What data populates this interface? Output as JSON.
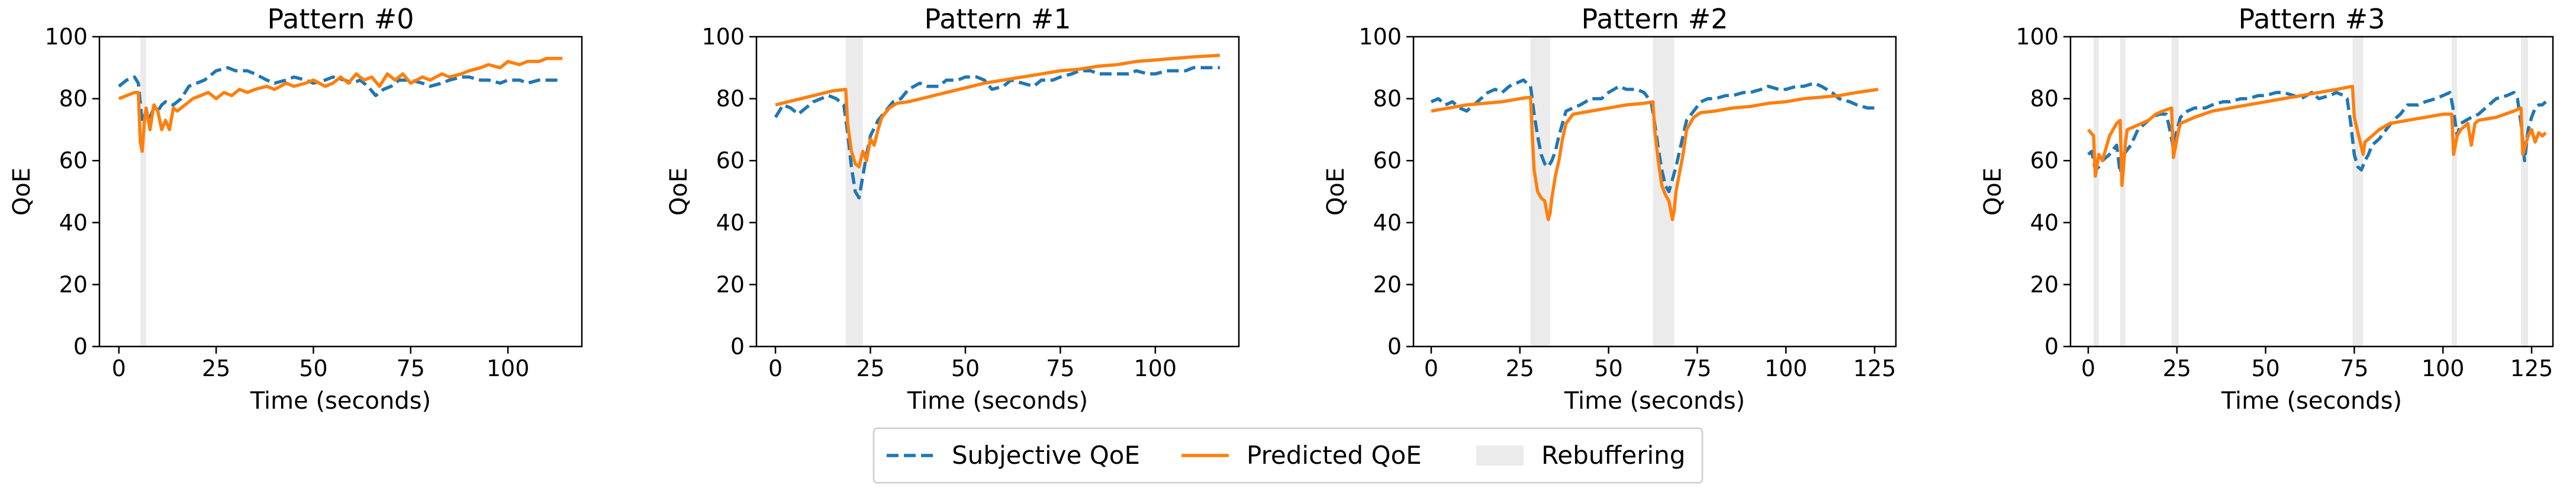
{
  "colors": {
    "subjective": "#1f77b4",
    "predicted": "#ff7f0e",
    "rebuffer": "#ebebeb"
  },
  "legend": {
    "placement": "bottom-center",
    "items": [
      {
        "label": "Subjective QoE",
        "style": "dashed",
        "color": "#1f77b4"
      },
      {
        "label": "Predicted QoE",
        "style": "solid",
        "color": "#ff7f0e"
      },
      {
        "label": "Rebuffering",
        "style": "patch",
        "color": "#ebebeb"
      }
    ]
  },
  "chart_data": [
    {
      "type": "line",
      "title": "Pattern #0",
      "xlabel": "Time (seconds)",
      "ylabel": "QoE",
      "xlim": [
        -5,
        119
      ],
      "ylim": [
        0,
        100
      ],
      "xticks": [
        0,
        25,
        50,
        75,
        100
      ],
      "yticks": [
        0,
        20,
        40,
        60,
        80,
        100
      ],
      "grid": false,
      "rebuffering": [
        [
          5.5,
          7
        ]
      ],
      "series": [
        {
          "name": "Subjective QoE",
          "x": [
            0,
            2,
            4,
            5,
            6,
            7,
            8,
            9,
            10,
            11,
            12,
            14,
            16,
            18,
            20,
            22,
            25,
            28,
            30,
            33,
            35,
            38,
            40,
            43,
            45,
            48,
            50,
            53,
            55,
            58,
            60,
            62,
            64,
            66,
            68,
            70,
            72,
            75,
            78,
            80,
            83,
            85,
            88,
            90,
            93,
            95,
            98,
            100,
            103,
            105,
            108,
            110,
            114
          ],
          "y": [
            84,
            86,
            87,
            85,
            72,
            76,
            74,
            77,
            76,
            78,
            79,
            78,
            80,
            84,
            85,
            86,
            89,
            90,
            89,
            89,
            88,
            86,
            85,
            86,
            87,
            86,
            85,
            86,
            87,
            86,
            85,
            86,
            84,
            81,
            83,
            84,
            86,
            86,
            85,
            84,
            85,
            86,
            87,
            87,
            86,
            86,
            85,
            86,
            86,
            85,
            86,
            86,
            86
          ]
        },
        {
          "name": "Predicted QoE",
          "x": [
            0,
            2,
            4,
            5,
            5.5,
            6,
            6.5,
            7,
            8,
            9,
            10,
            11,
            12,
            13,
            14,
            15,
            17,
            19,
            21,
            23,
            25,
            27,
            29,
            31,
            33,
            35,
            38,
            40,
            43,
            45,
            48,
            50,
            53,
            55,
            57,
            59,
            61,
            63,
            65,
            67,
            69,
            71,
            73,
            75,
            78,
            80,
            83,
            85,
            88,
            90,
            93,
            95,
            98,
            100,
            103,
            105,
            108,
            110,
            114
          ],
          "y": [
            80,
            81,
            82,
            82,
            66,
            63,
            72,
            77,
            70,
            78,
            76,
            70,
            73,
            70,
            77,
            76,
            78,
            80,
            81,
            82,
            80,
            82,
            81,
            83,
            82,
            83,
            84,
            83,
            85,
            84,
            85,
            86,
            84,
            85,
            87,
            85,
            88,
            86,
            87,
            84,
            88,
            86,
            88,
            85,
            87,
            86,
            88,
            87,
            88,
            89,
            90,
            91,
            90,
            92,
            91,
            92,
            92,
            93,
            93
          ]
        }
      ]
    },
    {
      "type": "line",
      "title": "Pattern #1",
      "xlabel": "Time (seconds)",
      "ylabel": "QoE",
      "xlim": [
        -5,
        122
      ],
      "ylim": [
        0,
        100
      ],
      "xticks": [
        0,
        25,
        50,
        75,
        100
      ],
      "yticks": [
        0,
        20,
        40,
        60,
        80,
        100
      ],
      "grid": false,
      "rebuffering": [
        [
          18.5,
          23
        ]
      ],
      "series": [
        {
          "name": "Subjective QoE",
          "x": [
            0,
            2,
            4,
            6,
            8,
            10,
            12,
            14,
            16,
            18,
            19,
            20,
            21,
            22,
            23,
            24,
            25,
            27,
            29,
            31,
            33,
            35,
            38,
            40,
            43,
            45,
            48,
            50,
            53,
            55,
            57,
            60,
            62,
            65,
            68,
            70,
            73,
            75,
            78,
            80,
            83,
            85,
            88,
            90,
            93,
            95,
            98,
            100,
            103,
            105,
            108,
            110,
            113,
            117
          ],
          "y": [
            74,
            78,
            77,
            75,
            77,
            79,
            80,
            81,
            80,
            78,
            69,
            58,
            50,
            48,
            55,
            62,
            68,
            73,
            76,
            79,
            80,
            83,
            85,
            84,
            84,
            86,
            86,
            87,
            87,
            86,
            83,
            84,
            86,
            85,
            84,
            86,
            86,
            87,
            88,
            89,
            89,
            88,
            88,
            88,
            88,
            89,
            88,
            88,
            89,
            89,
            89,
            90,
            90,
            90
          ]
        },
        {
          "name": "Predicted QoE",
          "x": [
            0,
            5,
            10,
            15,
            18.5,
            19,
            20,
            21,
            22,
            23,
            24,
            25,
            26,
            27,
            28,
            30,
            32,
            35,
            40,
            45,
            50,
            55,
            60,
            65,
            70,
            75,
            80,
            85,
            90,
            95,
            100,
            105,
            110,
            117
          ],
          "y": [
            78,
            79.5,
            81,
            82.5,
            83,
            72,
            63,
            59,
            58,
            63,
            60,
            67,
            65,
            70,
            74,
            77,
            78.5,
            79,
            80.5,
            82,
            83.5,
            85,
            86,
            87,
            88,
            89,
            89.5,
            90.5,
            91,
            92,
            92.5,
            93,
            93.5,
            94
          ]
        }
      ]
    },
    {
      "type": "line",
      "title": "Pattern #2",
      "xlabel": "Time (seconds)",
      "ylabel": "QoE",
      "xlim": [
        -5,
        131
      ],
      "ylim": [
        0,
        100
      ],
      "xticks": [
        0,
        25,
        50,
        75,
        100,
        125
      ],
      "yticks": [
        0,
        20,
        40,
        60,
        80,
        100
      ],
      "grid": false,
      "rebuffering": [
        [
          28,
          33.5
        ],
        [
          62.5,
          68.5
        ]
      ],
      "series": [
        {
          "name": "Subjective QoE",
          "x": [
            0,
            2,
            4,
            6,
            8,
            10,
            12,
            14,
            16,
            18,
            20,
            22,
            24,
            26,
            28,
            29,
            30,
            31,
            32,
            33,
            34,
            35,
            36,
            37,
            38,
            40,
            42,
            45,
            48,
            50,
            53,
            55,
            58,
            60,
            62,
            63,
            64,
            65,
            66,
            67,
            68,
            69,
            70,
            71,
            72,
            74,
            76,
            78,
            80,
            83,
            85,
            88,
            90,
            93,
            95,
            98,
            100,
            103,
            105,
            108,
            110,
            113,
            115,
            118,
            120,
            123,
            126
          ],
          "y": [
            79,
            80,
            78,
            79,
            77,
            76,
            78,
            80,
            82,
            83,
            82,
            84,
            85,
            86,
            84,
            75,
            68,
            62,
            59,
            58,
            60,
            63,
            68,
            72,
            76,
            77,
            78,
            80,
            80,
            82,
            84,
            83,
            83,
            82,
            79,
            72,
            64,
            57,
            52,
            50,
            54,
            58,
            63,
            68,
            73,
            76,
            79,
            80,
            80,
            81,
            81,
            82,
            82,
            83,
            84,
            83,
            83,
            84,
            84,
            85,
            84,
            82,
            80,
            79,
            78,
            77,
            77
          ]
        },
        {
          "name": "Predicted QoE",
          "x": [
            0,
            5,
            10,
            15,
            20,
            25,
            28,
            28.5,
            29,
            30,
            31,
            32,
            33,
            33.5,
            34,
            35,
            36,
            37,
            38,
            40,
            45,
            50,
            55,
            60,
            62.5,
            63,
            64,
            65,
            66,
            67,
            68,
            68.5,
            69,
            70,
            71,
            72,
            74,
            76,
            80,
            85,
            90,
            95,
            100,
            105,
            110,
            115,
            120,
            126
          ],
          "y": [
            76,
            77,
            78,
            78.5,
            79,
            80,
            80.5,
            68,
            57,
            50,
            48,
            47,
            41,
            43,
            48,
            55,
            60,
            67,
            72,
            75,
            76,
            77,
            78,
            78.5,
            79,
            70,
            60,
            52,
            49,
            47,
            41,
            44,
            50,
            56,
            62,
            70,
            74,
            75.5,
            76,
            77,
            77.5,
            78.5,
            79,
            80,
            80.5,
            81,
            82,
            83
          ]
        }
      ]
    },
    {
      "type": "line",
      "title": "Pattern #3",
      "xlabel": "Time (seconds)",
      "ylabel": "QoE",
      "xlim": [
        -5,
        131
      ],
      "ylim": [
        0,
        100
      ],
      "xticks": [
        0,
        25,
        50,
        75,
        100,
        125
      ],
      "yticks": [
        0,
        20,
        40,
        60,
        80,
        100
      ],
      "grid": false,
      "rebuffering": [
        [
          1.5,
          3
        ],
        [
          9,
          10.5
        ],
        [
          23.5,
          25.5
        ],
        [
          74.5,
          77.5
        ],
        [
          102.5,
          104
        ],
        [
          122,
          124
        ]
      ],
      "series": [
        {
          "name": "Subjective QoE",
          "x": [
            0,
            1,
            2,
            3,
            4,
            6,
            8,
            9,
            10,
            12,
            14,
            16,
            18,
            20,
            22,
            23,
            24,
            25,
            26,
            28,
            30,
            33,
            35,
            38,
            40,
            43,
            45,
            48,
            50,
            53,
            55,
            58,
            60,
            63,
            65,
            68,
            70,
            72,
            73,
            74,
            75,
            76,
            77,
            78,
            79,
            80,
            82,
            84,
            86,
            88,
            90,
            93,
            95,
            98,
            100,
            102,
            103,
            104,
            105,
            108,
            110,
            113,
            115,
            118,
            120,
            121,
            122,
            123,
            124,
            125,
            126,
            127,
            128,
            129
          ],
          "y": [
            62,
            63,
            57,
            58,
            60,
            62,
            65,
            56,
            62,
            65,
            70,
            72,
            74,
            75,
            75,
            70,
            64,
            70,
            74,
            76,
            77,
            77,
            78,
            79,
            79,
            80,
            80,
            81,
            81,
            82,
            82,
            81,
            80,
            82,
            80,
            81,
            82,
            81,
            80,
            72,
            62,
            58,
            57,
            60,
            62,
            65,
            67,
            70,
            73,
            75,
            78,
            78,
            79,
            80,
            81,
            82,
            76,
            68,
            72,
            74,
            75,
            78,
            80,
            81,
            82,
            80,
            72,
            60,
            70,
            74,
            77,
            78,
            78,
            79
          ]
        },
        {
          "name": "Predicted QoE",
          "x": [
            0,
            1.5,
            2,
            3,
            4,
            6,
            8,
            9,
            9.5,
            10.5,
            11,
            13,
            15,
            17,
            19,
            21,
            23.5,
            24,
            25.5,
            26,
            28,
            30,
            35,
            40,
            45,
            50,
            55,
            60,
            65,
            70,
            74.5,
            75,
            77.5,
            78,
            80,
            82,
            85,
            90,
            95,
            100,
            102.5,
            103,
            104,
            105,
            107,
            108,
            109,
            110,
            115,
            120,
            122,
            122.5,
            124,
            125,
            126,
            127,
            128,
            129
          ],
          "y": [
            70,
            68,
            55,
            62,
            60,
            68,
            72,
            73,
            52,
            66,
            70,
            71,
            72,
            73,
            75,
            76,
            77,
            61,
            70,
            72,
            73,
            74,
            76,
            77,
            78,
            79,
            80,
            81,
            82,
            83,
            84,
            74,
            62,
            66,
            68,
            70,
            72,
            73,
            74,
            75,
            75,
            62,
            68,
            70,
            72,
            65,
            72,
            73,
            74,
            76,
            77,
            62,
            68,
            70,
            66,
            69,
            68,
            69
          ]
        }
      ]
    }
  ]
}
